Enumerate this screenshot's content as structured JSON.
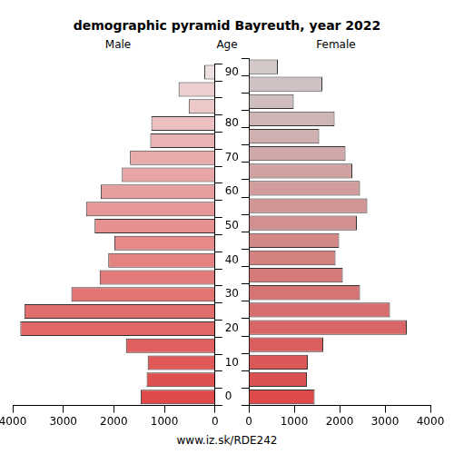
{
  "chart_data": {
    "type": "bar",
    "orientation": "horizontal",
    "title": "demographic pyramid Bayreuth, year 2022",
    "ylabel": "Age",
    "annotations": [
      "www.iz.sk/RDE242"
    ],
    "categories": [
      0,
      null,
      10,
      null,
      20,
      null,
      30,
      null,
      40,
      null,
      50,
      null,
      60,
      null,
      70,
      null,
      80,
      null,
      null,
      90
    ],
    "series": [
      {
        "name": "Male",
        "values": [
          1470,
          1350,
          1330,
          1760,
          3850,
          3770,
          2840,
          2280,
          2110,
          1990,
          2380,
          2550,
          2260,
          1840,
          1680,
          1280,
          1260,
          520,
          720,
          210
        ],
        "colors": [
          "#de4a4a",
          "#df5151",
          "#e05858",
          "#e05f5f",
          "#e16666",
          "#e26d6d",
          "#e37474",
          "#e47b7b",
          "#e48282",
          "#e58989",
          "#e69090",
          "#e79797",
          "#e79e9e",
          "#e8a5a5",
          "#e9acac",
          "#eab3b3",
          "#ebc1c1",
          "#ecc8c8",
          "#edcfcf",
          "#eee0e0"
        ]
      },
      {
        "name": "Female",
        "values": [
          1450,
          1280,
          1300,
          1640,
          3480,
          3110,
          2450,
          2070,
          1910,
          1990,
          2380,
          2610,
          2450,
          2280,
          2130,
          1550,
          1890,
          990,
          1620,
          640
        ],
        "colors": [
          "#de4a4a",
          "#dc5151",
          "#da5858",
          "#d95f5f",
          "#d86666",
          "#d76d6d",
          "#d67474",
          "#d57a7a",
          "#d48181",
          "#d38888",
          "#d28f8f",
          "#d19595",
          "#d19c9c",
          "#d0a2a2",
          "#cfa9a9",
          "#cfb0b0",
          "#cfb6b6",
          "#cfbcbc",
          "#d0c2c2",
          "#d2c8c8"
        ]
      }
    ],
    "xlim": [
      0,
      4000
    ],
    "xticks": [
      0,
      1000,
      2000,
      3000,
      4000
    ],
    "grid": false
  }
}
